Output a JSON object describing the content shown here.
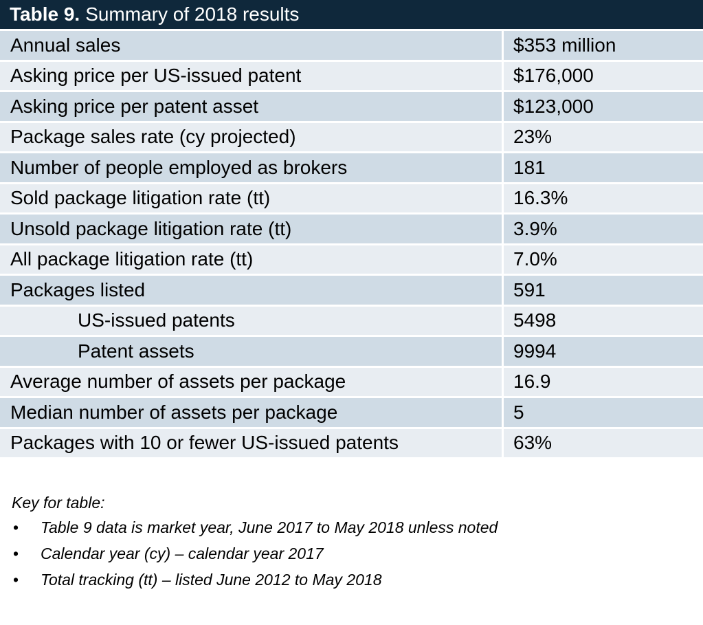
{
  "header": {
    "label": "Table 9.",
    "title": "Summary of 2018 results"
  },
  "table": {
    "rows": [
      {
        "label": "Annual sales",
        "value": "$353 million"
      },
      {
        "label": "Asking price per US-issued patent",
        "value": "$176,000"
      },
      {
        "label": "Asking price per patent asset",
        "value": "$123,000"
      },
      {
        "label": "Package sales rate (cy projected)",
        "value": "23%"
      },
      {
        "label": "Number of people employed as brokers",
        "value": "181"
      },
      {
        "label": "Sold package litigation rate (tt)",
        "value": "16.3%"
      },
      {
        "label": "Unsold package litigation rate (tt)",
        "value": "3.9%"
      },
      {
        "label": "All package litigation rate (tt)",
        "value": "7.0%"
      },
      {
        "label": "Packages listed",
        "value": "591",
        "children": [
          {
            "label": "US-issued patents",
            "value": "5498"
          },
          {
            "label": "Patent assets",
            "value": "9994"
          }
        ]
      },
      {
        "label": "Average number of assets per package",
        "value": "16.9"
      },
      {
        "label": "Median number of assets per package",
        "value": "5"
      },
      {
        "label": "Packages with 10 or fewer US-issued patents",
        "value": "63%"
      }
    ]
  },
  "key": {
    "title": "Key for table:",
    "items": [
      "Table 9 data is market year, June 2017 to May 2018 unless noted",
      "Calendar year (cy) – calendar year 2017",
      "Total tracking (tt) – listed June 2012 to May 2018"
    ]
  }
}
